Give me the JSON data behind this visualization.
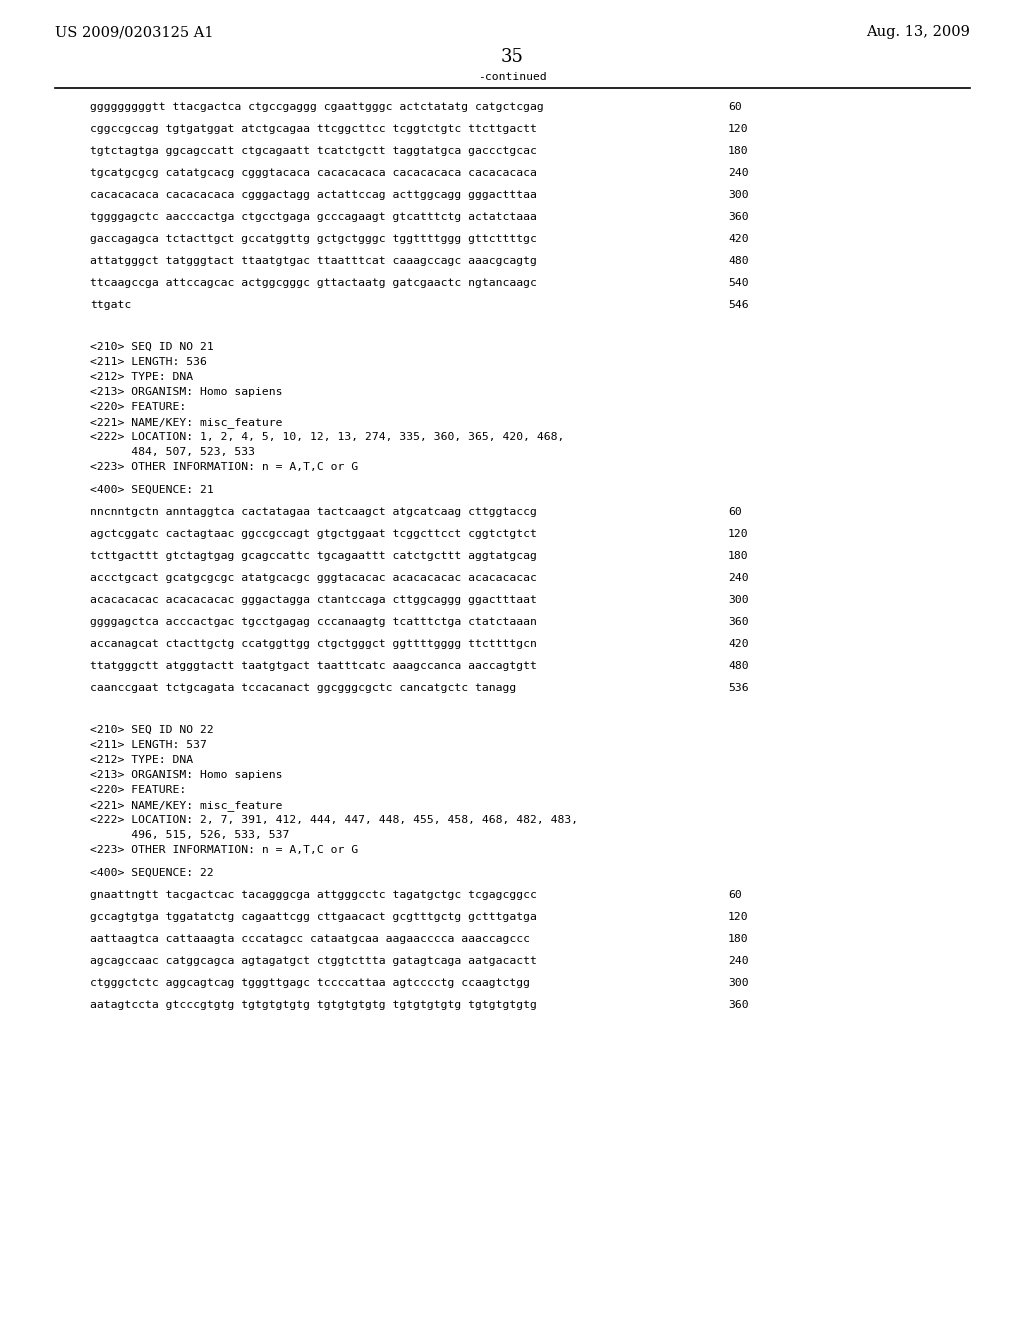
{
  "header_left": "US 2009/0203125 A1",
  "header_right": "Aug. 13, 2009",
  "page_number": "35",
  "continued_label": "-continued",
  "background_color": "#ffffff",
  "text_color": "#000000",
  "font_size_header": 10.5,
  "font_size_body": 8.2,
  "font_size_page": 13,
  "sequence_lines_top": [
    [
      "gggggggggtt ttacgactca ctgccgaggg cgaattgggc actctatatg catgctcgag",
      "60"
    ],
    [
      "cggccgccag tgtgatggat atctgcagaa ttcggcttcc tcggtctgtc ttcttgactt",
      "120"
    ],
    [
      "tgtctagtga ggcagccatt ctgcagaatt tcatctgctt taggtatgca gaccctgcac",
      "180"
    ],
    [
      "tgcatgcgcg catatgcacg cgggtacaca cacacacaca cacacacaca cacacacaca",
      "240"
    ],
    [
      "cacacacaca cacacacaca cgggactagg actattccag acttggcagg gggactttaa",
      "300"
    ],
    [
      "tggggagctc aacccactga ctgcctgaga gcccagaagt gtcatttctg actatctaaa",
      "360"
    ],
    [
      "gaccagagca tctacttgct gccatggttg gctgctgggc tggttttggg gttcttttgc",
      "420"
    ],
    [
      "attatgggct tatgggtact ttaatgtgac ttaatttcat caaagccagc aaacgcagtg",
      "480"
    ],
    [
      "ttcaagccga attccagcac actggcgggc gttactaatg gatcgaactc ngtancaagc",
      "540"
    ],
    [
      "ttgatc",
      "546"
    ]
  ],
  "meta_21": [
    "<210> SEQ ID NO 21",
    "<211> LENGTH: 536",
    "<212> TYPE: DNA",
    "<213> ORGANISM: Homo sapiens",
    "<220> FEATURE:",
    "<221> NAME/KEY: misc_feature",
    "<222> LOCATION: 1, 2, 4, 5, 10, 12, 13, 274, 335, 360, 365, 420, 468,",
    "      484, 507, 523, 533",
    "<223> OTHER INFORMATION: n = A,T,C or G"
  ],
  "seq_label_21": "<400> SEQUENCE: 21",
  "sequence_lines_21": [
    [
      "nncnntgctn anntaggtca cactatagaa tactcaagct atgcatcaag cttggtaccg",
      "60"
    ],
    [
      "agctcggatc cactagtaac ggccgccagt gtgctggaat tcggcttcct cggtctgtct",
      "120"
    ],
    [
      "tcttgacttt gtctagtgag gcagccattc tgcagaattt catctgcttt aggtatgcag",
      "180"
    ],
    [
      "accctgcact gcatgcgcgc atatgcacgc gggtacacac acacacacac acacacacac",
      "240"
    ],
    [
      "acacacacac acacacacac gggactagga ctantccaga cttggcaggg ggactttaat",
      "300"
    ],
    [
      "ggggagctca acccactgac tgcctgagag cccanaagtg tcatttctga ctatctaaan",
      "360"
    ],
    [
      "accanagcat ctacttgctg ccatggttgg ctgctgggct ggttttgggg ttcttttgcn",
      "420"
    ],
    [
      "ttatgggctt atgggtactt taatgtgact taatttcatc aaagccanca aaccagtgtt",
      "480"
    ],
    [
      "caanccgaat tctgcagata tccacanact ggcgggcgctc cancatgctc tanagg",
      "536"
    ]
  ],
  "meta_22": [
    "<210> SEQ ID NO 22",
    "<211> LENGTH: 537",
    "<212> TYPE: DNA",
    "<213> ORGANISM: Homo sapiens",
    "<220> FEATURE:",
    "<221> NAME/KEY: misc_feature",
    "<222> LOCATION: 2, 7, 391, 412, 444, 447, 448, 455, 458, 468, 482, 483,",
    "      496, 515, 526, 533, 537",
    "<223> OTHER INFORMATION: n = A,T,C or G"
  ],
  "seq_label_22": "<400> SEQUENCE: 22",
  "sequence_lines_22": [
    [
      "gnaattngtt tacgactcac tacagggcga attgggcctc tagatgctgc tcgagcggcc",
      "60"
    ],
    [
      "gccagtgtga tggatatctg cagaattcgg cttgaacact gcgtttgctg gctttgatga",
      "120"
    ],
    [
      "aattaagtca cattaaagta cccatagcc cataatgcaa aagaacccca aaaccagccc",
      "180"
    ],
    [
      "agcagccaac catggcagca agtagatgct ctggtcttta gatagtcaga aatgacactt",
      "240"
    ],
    [
      "ctgggctctc aggcagtcag tgggttgagc tccccattaa agtcccctg ccaagtctgg",
      "300"
    ],
    [
      "aatagtccta gtcccgtgtg tgtgtgtgtg tgtgtgtgtg tgtgtgtgtg tgtgtgtgtg",
      "360"
    ]
  ]
}
